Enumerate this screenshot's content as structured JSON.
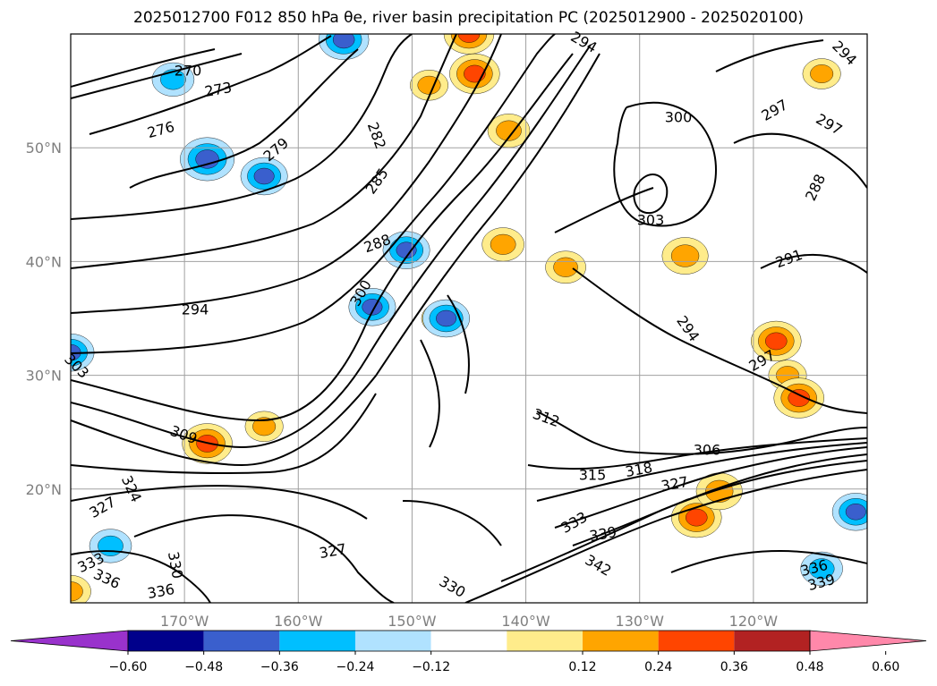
{
  "title": "2025012700 F012 850 hPa θe, river basin precipitation PC (2025012900 - 2025020100)",
  "map": {
    "projection": "cylindrical",
    "lon_range": [
      -180,
      -110
    ],
    "lat_range": [
      10,
      60
    ],
    "grid": true,
    "lat_ticks": [
      {
        "value": 50,
        "label": "50°N"
      },
      {
        "value": 40,
        "label": "40°N"
      },
      {
        "value": 30,
        "label": "30°N"
      },
      {
        "value": 20,
        "label": "20°N"
      }
    ],
    "lon_ticks": [
      {
        "value": -170,
        "label": "170°W"
      },
      {
        "value": -160,
        "label": "160°W"
      },
      {
        "value": -150,
        "label": "150°W"
      },
      {
        "value": -140,
        "label": "140°W"
      },
      {
        "value": -130,
        "label": "130°W"
      },
      {
        "value": -120,
        "label": "120°W"
      }
    ],
    "contour_labels": [
      "270",
      "273",
      "276",
      "279",
      "282",
      "285",
      "288",
      "294",
      "300",
      "303",
      "309",
      "327",
      "324",
      "333",
      "336",
      "336",
      "330",
      "327",
      "330",
      "342",
      "339",
      "333",
      "315",
      "318",
      "327",
      "306",
      "312",
      "297",
      "294",
      "303",
      "291",
      "288",
      "300",
      "297",
      "297",
      "294",
      "294",
      "336",
      "339"
    ]
  },
  "colorbar": {
    "ticks": [
      "−0.60",
      "−0.48",
      "−0.36",
      "−0.24",
      "−0.12",
      "0.12",
      "0.24",
      "0.36",
      "0.48",
      "0.60"
    ],
    "colors": [
      "#9932cc",
      "#00008b",
      "#3a5fcd",
      "#00bfff",
      "#b0e2ff",
      "#ffffff",
      "#ffec8b",
      "#ffa500",
      "#ff4500",
      "#b22222",
      "#ff88aa"
    ]
  },
  "chart_data": {
    "type": "heatmap",
    "variable_contours": "850 hPa theta-e (K)",
    "variable_shaded": "river basin precipitation PC",
    "contour_levels": [
      270,
      273,
      276,
      279,
      282,
      285,
      288,
      291,
      294,
      297,
      300,
      303,
      306,
      309,
      312,
      315,
      318,
      321,
      324,
      327,
      330,
      333,
      336,
      339,
      342
    ],
    "shaded_levels": [
      -0.6,
      -0.48,
      -0.36,
      -0.24,
      -0.12,
      0.12,
      0.24,
      0.36,
      0.48,
      0.6
    ],
    "blobs": [
      {
        "lon": -144.5,
        "lat": 56.5,
        "value": 0.4
      },
      {
        "lon": -141.5,
        "lat": 51.5,
        "value": 0.3
      },
      {
        "lon": -148.5,
        "lat": 55.5,
        "value": 0.25
      },
      {
        "lon": -142.0,
        "lat": 41.5,
        "value": 0.3
      },
      {
        "lon": -168.0,
        "lat": 24.0,
        "value": 0.4
      },
      {
        "lon": -163.0,
        "lat": 25.5,
        "value": 0.25
      },
      {
        "lon": -125.0,
        "lat": 17.5,
        "value": 0.4
      },
      {
        "lon": -123.0,
        "lat": 19.8,
        "value": 0.35
      },
      {
        "lon": -145.0,
        "lat": 60.0,
        "value": 0.4
      },
      {
        "lon": -114.0,
        "lat": 56.5,
        "value": 0.25
      },
      {
        "lon": -126.0,
        "lat": 40.5,
        "value": 0.35
      },
      {
        "lon": -118.0,
        "lat": 33.0,
        "value": 0.4
      },
      {
        "lon": -117.0,
        "lat": 30.0,
        "value": 0.25
      },
      {
        "lon": -116.0,
        "lat": 28.0,
        "value": 0.4
      },
      {
        "lon": -136.5,
        "lat": 39.5,
        "value": 0.28
      },
      {
        "lon": -147.5,
        "lat": 35.0,
        "value": 0.25
      },
      {
        "lon": -180.0,
        "lat": 11.0,
        "value": 0.28
      },
      {
        "lon": -168.0,
        "lat": 49.0,
        "value": -0.45
      },
      {
        "lon": -171.0,
        "lat": 56.0,
        "value": -0.3
      },
      {
        "lon": -163.0,
        "lat": 47.5,
        "value": -0.36
      },
      {
        "lon": -150.5,
        "lat": 41.0,
        "value": -0.36
      },
      {
        "lon": -153.5,
        "lat": 36.0,
        "value": -0.36
      },
      {
        "lon": -147.0,
        "lat": 35.0,
        "value": -0.36
      },
      {
        "lon": -156.0,
        "lat": 59.5,
        "value": -0.4
      },
      {
        "lon": -180.0,
        "lat": 32.0,
        "value": -0.36
      },
      {
        "lon": -111.0,
        "lat": 18.0,
        "value": -0.36
      },
      {
        "lon": -176.5,
        "lat": 15.0,
        "value": -0.3
      },
      {
        "lon": -114.0,
        "lat": 13.0,
        "value": -0.3
      }
    ]
  }
}
